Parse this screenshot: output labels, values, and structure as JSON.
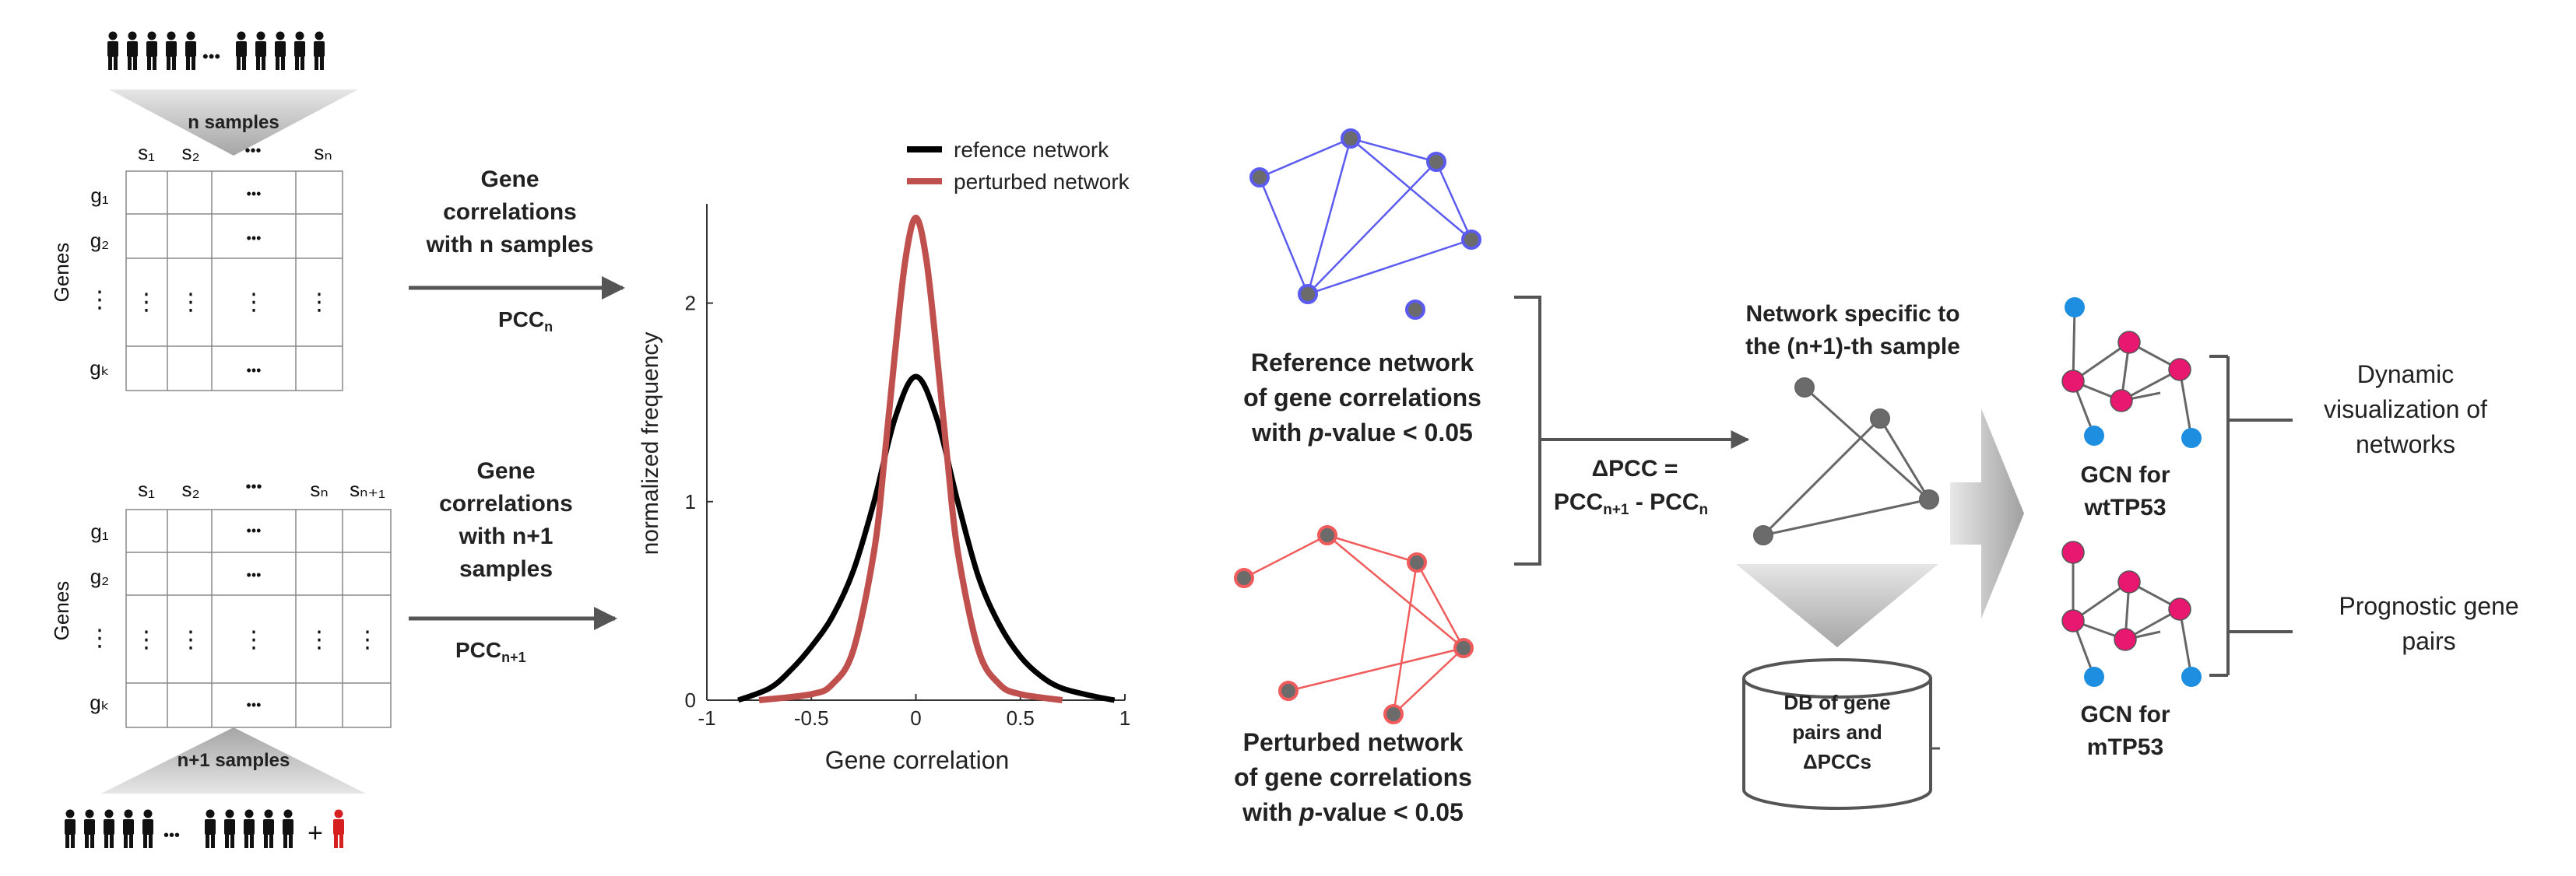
{
  "matrix_top": {
    "samples_label": "n samples",
    "col_headers": [
      "s₁",
      "s₂",
      "•••",
      "sₙ"
    ],
    "row_headers": [
      "g₁",
      "g₂",
      "⋮",
      "gₖ"
    ],
    "axis_label": "Genes"
  },
  "matrix_bottom": {
    "samples_label": "n+1 samples",
    "col_headers": [
      "s₁",
      "s₂",
      "•••",
      "sₙ",
      "sₙ₊₁"
    ],
    "row_headers": [
      "g₁",
      "g₂",
      "⋮",
      "gₖ"
    ],
    "axis_label": "Genes",
    "ellipsis": "•••",
    "plus": "+"
  },
  "arrow_top": {
    "lines": [
      "Gene",
      "correlations",
      "with n samples"
    ],
    "pcc": "PCC",
    "pcc_sub": "n"
  },
  "arrow_bottom": {
    "lines": [
      "Gene",
      "correlations",
      "with n+1",
      "samples"
    ],
    "pcc": "PCC",
    "pcc_sub": "n+1"
  },
  "chart_data": {
    "type": "line",
    "xlabel": "Gene correlation",
    "ylabel": "normalized frequency",
    "xlim": [
      -1,
      1
    ],
    "ylim": [
      0,
      2.5
    ],
    "xticks": [
      -1,
      -0.5,
      0,
      0.5,
      1
    ],
    "xtick_labels": [
      "-1",
      "-0.5",
      "0",
      "0.5",
      "1"
    ],
    "yticks": [
      0,
      1,
      2
    ],
    "ytick_labels": [
      "0",
      "1",
      "2"
    ],
    "legend_position": "top-right",
    "series": [
      {
        "name": "refence network",
        "color": "#000000",
        "x": [
          -0.85,
          -0.7,
          -0.6,
          -0.5,
          -0.4,
          -0.3,
          -0.2,
          -0.1,
          0,
          0.1,
          0.2,
          0.3,
          0.4,
          0.5,
          0.6,
          0.7,
          0.85,
          0.95
        ],
        "y": [
          0,
          0.06,
          0.15,
          0.27,
          0.42,
          0.65,
          1.0,
          1.42,
          1.63,
          1.42,
          1.0,
          0.62,
          0.38,
          0.22,
          0.12,
          0.06,
          0.02,
          0
        ]
      },
      {
        "name": "perturbed network",
        "color": "#c0504d",
        "x": [
          -0.75,
          -0.5,
          -0.4,
          -0.3,
          -0.2,
          -0.15,
          -0.1,
          -0.05,
          0,
          0.05,
          0.1,
          0.15,
          0.2,
          0.3,
          0.4,
          0.5,
          0.7
        ],
        "y": [
          0,
          0.03,
          0.08,
          0.25,
          0.75,
          1.22,
          1.75,
          2.22,
          2.43,
          2.22,
          1.75,
          1.22,
          0.75,
          0.25,
          0.08,
          0.03,
          0
        ]
      }
    ]
  },
  "reference_network": {
    "lines": [
      "Reference network",
      "of gene correlations"
    ],
    "pvalue_prefix": "with ",
    "p": "p",
    "pvalue_suffix": "-value < 0.05",
    "node_color": "#6b6b6b",
    "edge_color": "#5b5bf0"
  },
  "perturbed_network": {
    "lines": [
      "Perturbed network",
      "of gene correlations"
    ],
    "pvalue_prefix": "with ",
    "p": "p",
    "pvalue_suffix": "-value < 0.05",
    "node_color": "#6b6b6b",
    "edge_color": "#f05b5b"
  },
  "delta_pcc": {
    "line1": "ΔPCC =",
    "pcc_a": "PCC",
    "sub_a": "n+1",
    "minus": " - ",
    "pcc_b": "PCC",
    "sub_b": "n"
  },
  "specific_network": {
    "lines": [
      "Network specific to",
      "the (n+1)-th sample"
    ]
  },
  "database": {
    "lines": [
      "DB of gene",
      "pairs and",
      "ΔPCCs"
    ]
  },
  "gcn_wt": {
    "lines": [
      "GCN for",
      "wtTP53"
    ]
  },
  "gcn_m": {
    "lines": [
      "GCN for",
      "mTP53"
    ]
  },
  "outputs": {
    "dynamic": [
      "Dynamic",
      "visualization of",
      "networks"
    ],
    "prognostic": [
      "Prognostic gene",
      "pairs"
    ]
  },
  "colors": {
    "pink_node": "#e8176f",
    "blue_node": "#1e8fe0",
    "arrow_gray": "#555555",
    "grid_line": "#888888"
  }
}
